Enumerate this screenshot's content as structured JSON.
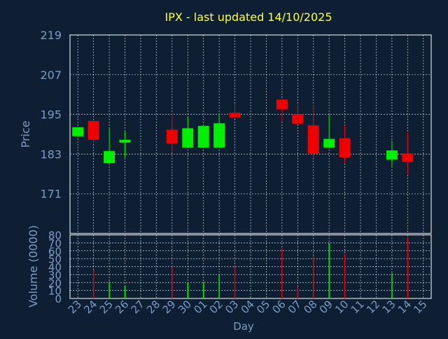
{
  "title": "IPX - last updated 14/10/2025",
  "colors": {
    "background": "#0f1f33",
    "title": "#ffff33",
    "axis_text": "#7a9cc6",
    "frame": "#ffffff",
    "up": "#00ee00",
    "down": "#ee0000"
  },
  "chart_data": [
    {
      "type": "candlestick",
      "ylabel": "Price",
      "ylim": [
        159,
        219
      ],
      "yticks": [
        219,
        207,
        195,
        183,
        171
      ],
      "grid": true,
      "x": [
        "23",
        "24",
        "25",
        "26",
        "27",
        "28",
        "29",
        "30",
        "01",
        "02",
        "03",
        "04",
        "05",
        "06",
        "07",
        "08",
        "09",
        "10",
        "11",
        "12",
        "13",
        "14",
        "15"
      ],
      "candles": [
        {
          "x": "23",
          "open": 188.4,
          "close": 191.1,
          "high": 191.1,
          "low": 188.4
        },
        {
          "x": "24",
          "open": 193.0,
          "close": 187.3,
          "high": 193.0,
          "low": 186.4
        },
        {
          "x": "25",
          "open": 180.3,
          "close": 183.9,
          "high": 190.8,
          "low": 180.3
        },
        {
          "x": "26",
          "open": 186.6,
          "close": 187.3,
          "high": 190.0,
          "low": 182.0
        },
        {
          "x": "29",
          "open": 190.4,
          "close": 186.2,
          "high": 195.5,
          "low": 183.6
        },
        {
          "x": "30",
          "open": 185.0,
          "close": 190.8,
          "high": 194.2,
          "low": 185.0
        },
        {
          "x": "01",
          "open": 185.0,
          "close": 191.5,
          "high": 191.5,
          "low": 185.0
        },
        {
          "x": "02",
          "open": 185.0,
          "close": 192.3,
          "high": 195.3,
          "low": 185.0
        },
        {
          "x": "03",
          "open": 195.5,
          "close": 194.0,
          "high": 198.3,
          "low": 194.0
        },
        {
          "x": "06",
          "open": 199.5,
          "close": 196.5,
          "high": 199.5,
          "low": 192.9
        },
        {
          "x": "07",
          "open": 195.0,
          "close": 192.2,
          "high": 198.0,
          "low": 192.2
        },
        {
          "x": "08",
          "open": 191.7,
          "close": 183.2,
          "high": 197.8,
          "low": 182.0
        },
        {
          "x": "09",
          "open": 185.0,
          "close": 187.6,
          "high": 195.0,
          "low": 185.0
        },
        {
          "x": "10",
          "open": 187.8,
          "close": 182.0,
          "high": 191.7,
          "low": 180.1
        },
        {
          "x": "13",
          "open": 181.3,
          "close": 184.1,
          "high": 187.1,
          "low": 178.9
        },
        {
          "x": "14",
          "open": 183.2,
          "close": 180.6,
          "high": 189.4,
          "low": 177.0
        }
      ]
    },
    {
      "type": "bar",
      "xlabel": "Day",
      "ylabel": "Volume (0000)",
      "ylim": [
        0,
        80
      ],
      "yticks": [
        0,
        10,
        20,
        30,
        40,
        50,
        60,
        70,
        80
      ],
      "grid": true,
      "x": [
        "23",
        "24",
        "25",
        "26",
        "27",
        "28",
        "29",
        "30",
        "01",
        "02",
        "03",
        "04",
        "05",
        "06",
        "07",
        "08",
        "09",
        "10",
        "11",
        "12",
        "13",
        "14",
        "15"
      ],
      "bars": [
        {
          "x": "24",
          "value": 36,
          "dir": "down"
        },
        {
          "x": "25",
          "value": 21,
          "dir": "up"
        },
        {
          "x": "26",
          "value": 16,
          "dir": "up"
        },
        {
          "x": "29",
          "value": 40,
          "dir": "down"
        },
        {
          "x": "30",
          "value": 20,
          "dir": "up"
        },
        {
          "x": "01",
          "value": 21,
          "dir": "up"
        },
        {
          "x": "02",
          "value": 29,
          "dir": "up"
        },
        {
          "x": "03",
          "value": 40,
          "dir": "down"
        },
        {
          "x": "06",
          "value": 63,
          "dir": "down"
        },
        {
          "x": "07",
          "value": 15,
          "dir": "down"
        },
        {
          "x": "08",
          "value": 53,
          "dir": "down"
        },
        {
          "x": "09",
          "value": 70,
          "dir": "up"
        },
        {
          "x": "10",
          "value": 55,
          "dir": "down"
        },
        {
          "x": "13",
          "value": 32,
          "dir": "up"
        },
        {
          "x": "14",
          "value": 77,
          "dir": "down"
        }
      ]
    }
  ]
}
